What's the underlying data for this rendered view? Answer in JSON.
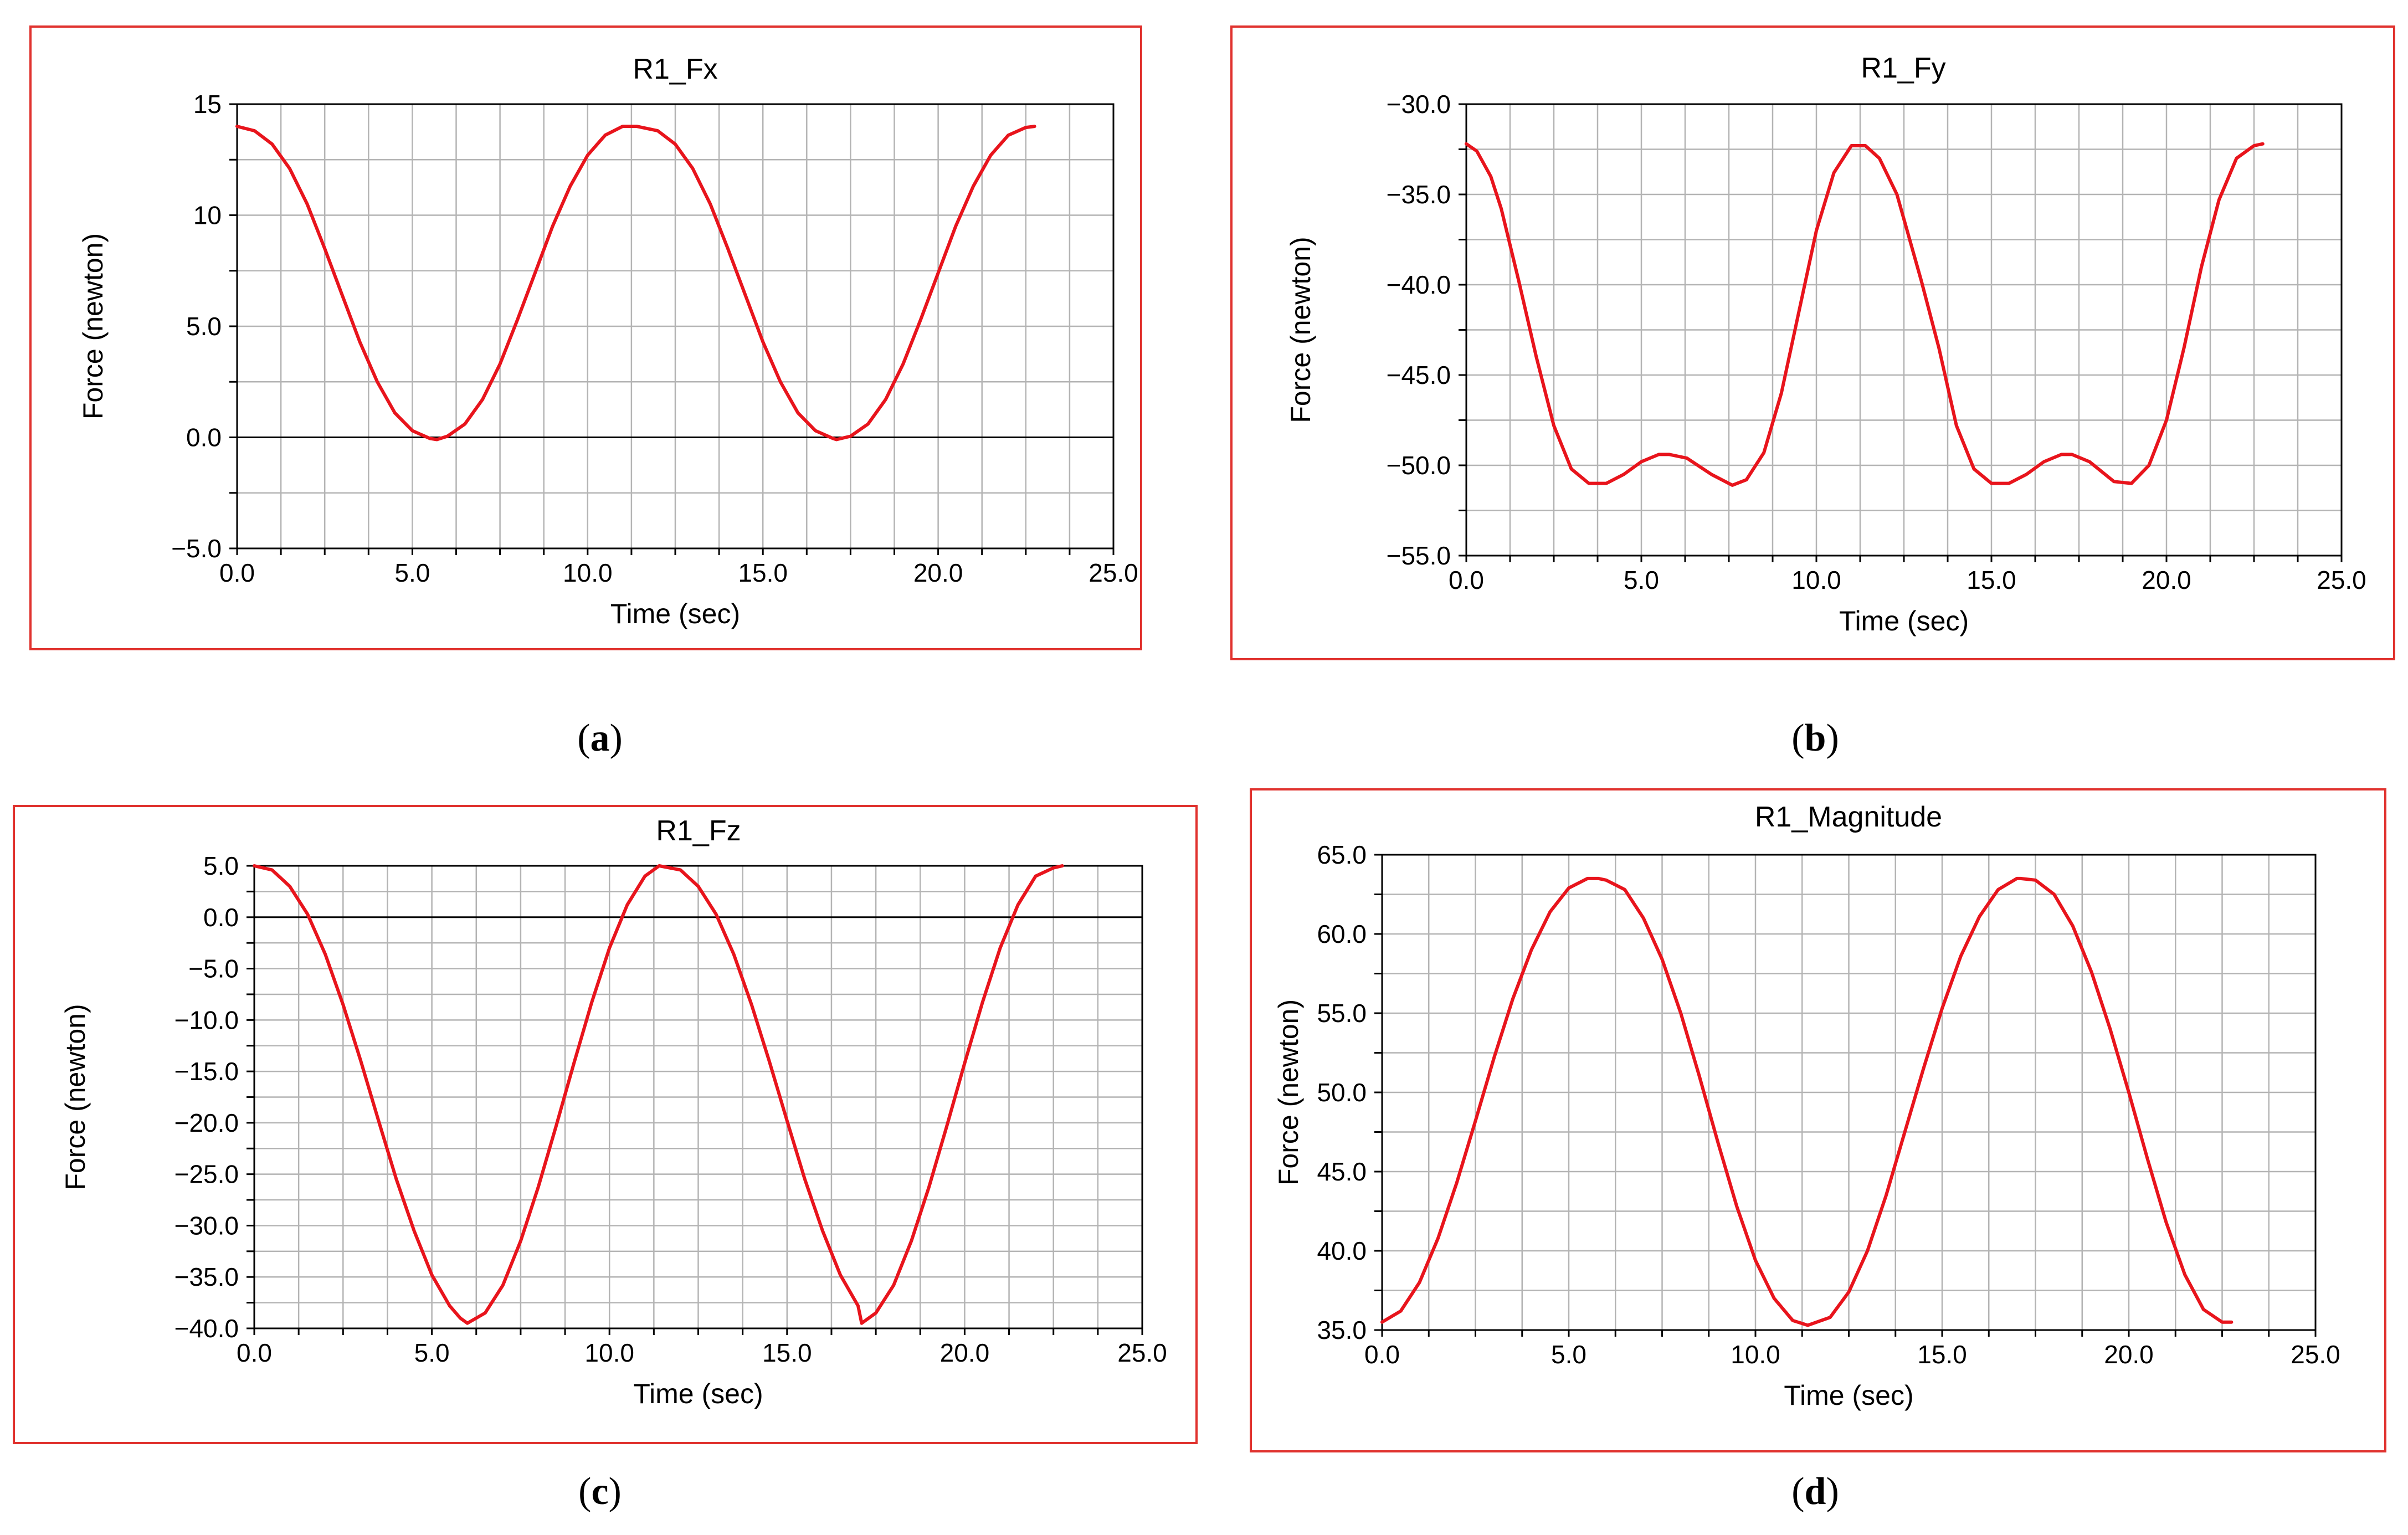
{
  "figure": {
    "colors": {
      "series": "#e8141c",
      "frame": "#e0322e",
      "grid": "#b4b4b4",
      "axis": "#000000"
    }
  },
  "chart_data": [
    {
      "id": "a",
      "type": "line",
      "title": "R1_Fx",
      "xlabel": "Time (sec)",
      "ylabel": "Force (newton)",
      "caption": {
        "open": "(",
        "letter": "a",
        "close": ")"
      },
      "xlim": [
        0,
        25
      ],
      "ylim": [
        -5,
        15
      ],
      "xticks": [
        0,
        5,
        10,
        15,
        20,
        25
      ],
      "xtick_labels": [
        "0.0",
        "5.0",
        "10.0",
        "15.0",
        "20.0",
        "25.0"
      ],
      "yticks": [
        15,
        10,
        5,
        0,
        -5
      ],
      "ytick_labels": [
        "15",
        "10",
        "5.0",
        "0.0",
        "−5.0"
      ],
      "grid_x_step": 1.25,
      "grid_y_step": 2.5,
      "zero_line": true,
      "grid": true,
      "legend": "none",
      "series": [
        {
          "name": "R1_Fx",
          "color": "#e8141c",
          "x": [
            0.0,
            0.5,
            1.0,
            1.5,
            2.0,
            2.5,
            3.0,
            3.5,
            4.0,
            4.5,
            5.0,
            5.5,
            5.7,
            6.0,
            6.5,
            7.0,
            7.5,
            8.0,
            8.5,
            9.0,
            9.5,
            10.0,
            10.5,
            11.0,
            11.4,
            12.0,
            12.5,
            13.0,
            13.5,
            14.0,
            14.5,
            15.0,
            15.5,
            16.0,
            16.5,
            17.0,
            17.1,
            17.5,
            18.0,
            18.5,
            19.0,
            19.5,
            20.0,
            20.5,
            21.0,
            21.5,
            22.0,
            22.5,
            22.75
          ],
          "y": [
            14.0,
            13.8,
            13.2,
            12.1,
            10.5,
            8.5,
            6.4,
            4.3,
            2.5,
            1.1,
            0.3,
            -0.05,
            -0.1,
            0.05,
            0.6,
            1.7,
            3.3,
            5.3,
            7.4,
            9.5,
            11.3,
            12.7,
            13.6,
            14.0,
            14.0,
            13.8,
            13.2,
            12.1,
            10.5,
            8.5,
            6.4,
            4.3,
            2.5,
            1.1,
            0.3,
            -0.05,
            -0.1,
            0.05,
            0.6,
            1.7,
            3.3,
            5.3,
            7.4,
            9.5,
            11.3,
            12.7,
            13.6,
            13.95,
            14.0
          ]
        }
      ]
    },
    {
      "id": "b",
      "type": "line",
      "title": "R1_Fy",
      "xlabel": "Time (sec)",
      "ylabel": "Force (newton)",
      "caption": {
        "open": "(",
        "letter": "b",
        "close": ")"
      },
      "xlim": [
        0,
        25
      ],
      "ylim": [
        -55,
        -30
      ],
      "xticks": [
        0,
        5,
        10,
        15,
        20,
        25
      ],
      "xtick_labels": [
        "0.0",
        "5.0",
        "10.0",
        "15.0",
        "20.0",
        "25.0"
      ],
      "yticks": [
        -30,
        -35,
        -40,
        -45,
        -50,
        -55
      ],
      "ytick_labels": [
        "−30.0",
        "−35.0",
        "−40.0",
        "−45.0",
        "−50.0",
        "−55.0"
      ],
      "grid_x_step": 1.25,
      "grid_y_step": 2.5,
      "zero_line": false,
      "grid": true,
      "legend": "none",
      "series": [
        {
          "name": "R1_Fy",
          "color": "#e8141c",
          "x": [
            0.0,
            0.3,
            0.7,
            1.0,
            1.5,
            2.0,
            2.5,
            3.0,
            3.5,
            4.0,
            4.5,
            5.0,
            5.5,
            5.8,
            6.3,
            7.0,
            7.6,
            8.0,
            8.5,
            9.0,
            9.5,
            10.0,
            10.5,
            11.0,
            11.4,
            11.8,
            12.3,
            13.0,
            13.5,
            14.0,
            14.5,
            15.0,
            15.5,
            16.0,
            16.5,
            17.0,
            17.3,
            17.8,
            18.5,
            19.0,
            19.5,
            20.0,
            20.5,
            21.0,
            21.5,
            22.0,
            22.5,
            22.75
          ],
          "y": [
            -32.2,
            -32.6,
            -34.0,
            -35.8,
            -39.8,
            -44.0,
            -47.8,
            -50.2,
            -51.0,
            -51.0,
            -50.5,
            -49.8,
            -49.4,
            -49.4,
            -49.6,
            -50.5,
            -51.1,
            -50.8,
            -49.3,
            -46.0,
            -41.5,
            -37.0,
            -33.8,
            -32.3,
            -32.3,
            -33.0,
            -35.0,
            -39.8,
            -43.5,
            -47.8,
            -50.2,
            -51.0,
            -51.0,
            -50.5,
            -49.8,
            -49.4,
            -49.4,
            -49.8,
            -50.9,
            -51.0,
            -50.0,
            -47.5,
            -43.5,
            -39.0,
            -35.3,
            -33.0,
            -32.3,
            -32.2
          ]
        }
      ]
    },
    {
      "id": "c",
      "type": "line",
      "title": "R1_Fz",
      "xlabel": "Time (sec)",
      "ylabel": "Force (newton)",
      "caption": {
        "open": "(",
        "letter": "c",
        "close": ")"
      },
      "xlim": [
        0,
        25
      ],
      "ylim": [
        -40,
        5
      ],
      "xticks": [
        0,
        5,
        10,
        15,
        20,
        25
      ],
      "xtick_labels": [
        "0.0",
        "5.0",
        "10.0",
        "15.0",
        "20.0",
        "25.0"
      ],
      "yticks": [
        5,
        0,
        -5,
        -10,
        -15,
        -20,
        -25,
        -30,
        -35,
        -40
      ],
      "ytick_labels": [
        "5.0",
        "0.0",
        "−5.0",
        "−10.0",
        "−15.0",
        "−20.0",
        "−25.0",
        "−30.0",
        "−35.0",
        "−40.0"
      ],
      "grid_x_step": 1.25,
      "grid_y_step": 2.5,
      "zero_line": true,
      "grid": true,
      "legend": "none",
      "series": [
        {
          "name": "R1_Fz",
          "color": "#e8141c",
          "x": [
            0.0,
            0.5,
            1.0,
            1.5,
            2.0,
            2.5,
            3.0,
            3.5,
            4.0,
            4.5,
            5.0,
            5.5,
            5.8,
            6.0,
            6.5,
            7.0,
            7.5,
            8.0,
            8.5,
            9.0,
            9.5,
            10.0,
            10.5,
            11.0,
            11.4,
            12.0,
            12.5,
            13.0,
            13.5,
            14.0,
            14.5,
            15.0,
            15.5,
            16.0,
            16.5,
            17.0,
            17.1,
            17.5,
            18.0,
            18.5,
            19.0,
            19.5,
            20.0,
            20.5,
            21.0,
            21.5,
            22.0,
            22.5,
            22.75
          ],
          "y": [
            5.0,
            4.6,
            3.0,
            0.3,
            -3.6,
            -8.5,
            -14.0,
            -19.8,
            -25.5,
            -30.5,
            -34.8,
            -37.8,
            -39.0,
            -39.5,
            -38.5,
            -35.8,
            -31.5,
            -26.2,
            -20.3,
            -14.2,
            -8.3,
            -3.0,
            1.2,
            4.0,
            5.0,
            4.6,
            3.0,
            0.3,
            -3.6,
            -8.5,
            -14.0,
            -19.8,
            -25.5,
            -30.5,
            -34.8,
            -37.8,
            -39.5,
            -38.5,
            -35.8,
            -31.5,
            -26.2,
            -20.3,
            -14.2,
            -8.3,
            -3.0,
            1.2,
            4.0,
            4.8,
            5.0
          ]
        }
      ]
    },
    {
      "id": "d",
      "type": "line",
      "title": "R1_Magnitude",
      "xlabel": "Time (sec)",
      "ylabel": "Force (newton)",
      "caption": {
        "open": "(",
        "letter": "d",
        "close": ")"
      },
      "xlim": [
        0,
        25
      ],
      "ylim": [
        35,
        65
      ],
      "xticks": [
        0,
        5,
        10,
        15,
        20,
        25
      ],
      "xtick_labels": [
        "0.0",
        "5.0",
        "10.0",
        "15.0",
        "20.0",
        "25.0"
      ],
      "yticks": [
        65,
        60,
        55,
        50,
        45,
        40,
        35
      ],
      "ytick_labels": [
        "65.0",
        "60.0",
        "55.0",
        "50.0",
        "45.0",
        "40.0",
        "35.0"
      ],
      "grid_x_step": 1.25,
      "grid_y_step": 2.5,
      "zero_line": false,
      "grid": true,
      "legend": "none",
      "series": [
        {
          "name": "R1_Magnitude",
          "color": "#e8141c",
          "x": [
            0.0,
            0.5,
            1.0,
            1.5,
            2.0,
            2.5,
            3.0,
            3.5,
            4.0,
            4.5,
            5.0,
            5.5,
            5.8,
            6.0,
            6.5,
            7.0,
            7.5,
            8.0,
            8.5,
            9.0,
            9.5,
            10.0,
            10.5,
            11.0,
            11.4,
            12.0,
            12.5,
            13.0,
            13.5,
            14.0,
            14.5,
            15.0,
            15.5,
            16.0,
            16.5,
            17.0,
            17.1,
            17.5,
            18.0,
            18.5,
            19.0,
            19.5,
            20.0,
            20.5,
            21.0,
            21.5,
            22.0,
            22.5,
            22.75
          ],
          "y": [
            35.5,
            36.2,
            38.0,
            40.8,
            44.3,
            48.2,
            52.2,
            55.9,
            59.0,
            61.4,
            62.9,
            63.5,
            63.5,
            63.4,
            62.8,
            61.0,
            58.4,
            55.0,
            51.0,
            46.8,
            42.8,
            39.4,
            37.0,
            35.6,
            35.3,
            35.8,
            37.4,
            40.0,
            43.5,
            47.5,
            51.5,
            55.3,
            58.6,
            61.1,
            62.8,
            63.5,
            63.5,
            63.4,
            62.5,
            60.5,
            57.6,
            54.0,
            50.0,
            45.8,
            41.8,
            38.5,
            36.3,
            35.5,
            35.5
          ]
        }
      ]
    }
  ]
}
